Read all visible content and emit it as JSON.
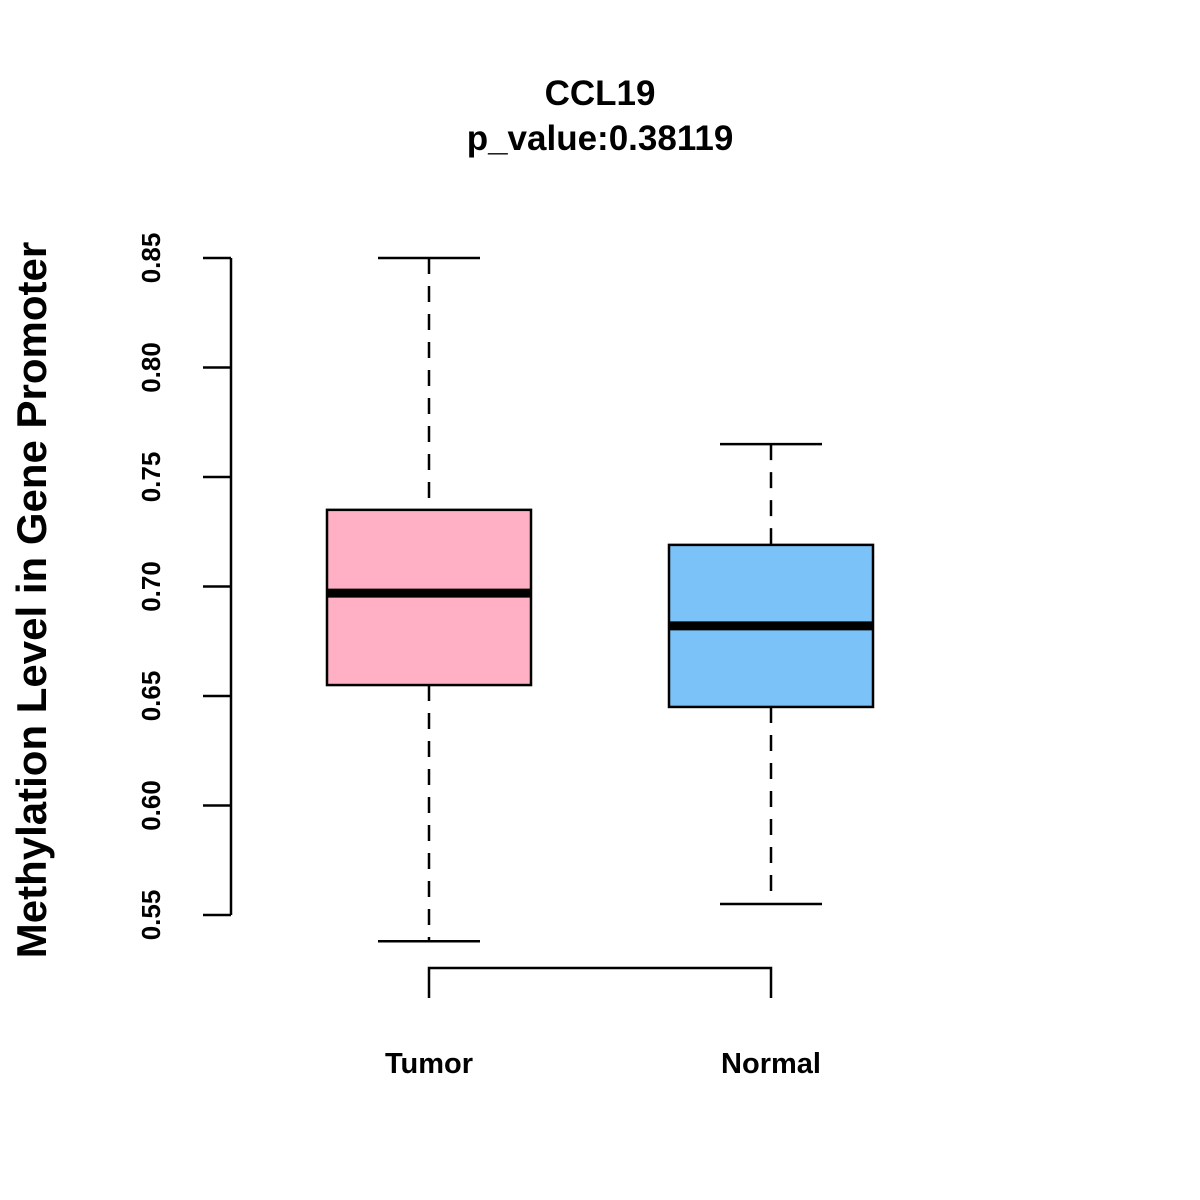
{
  "chart_data": {
    "type": "boxplot",
    "title": "CCL19",
    "subtitle": "p_value:0.38119",
    "xlabel": "",
    "ylabel": "Methylation Level in Gene Promoter",
    "ylim": [
      0.55,
      0.85
    ],
    "yticks": [
      "0.55",
      "0.60",
      "0.65",
      "0.70",
      "0.75",
      "0.80",
      "0.85"
    ],
    "grid": false,
    "categories": [
      "Tumor",
      "Normal"
    ],
    "boxes": [
      {
        "name": "Tumor",
        "color": "#FFB0C4",
        "whisker_low": 0.538,
        "q1": 0.655,
        "median": 0.697,
        "q3": 0.735,
        "whisker_high": 0.85
      },
      {
        "name": "Normal",
        "color": "#7BC2F8",
        "whisker_low": 0.555,
        "q1": 0.645,
        "median": 0.682,
        "q3": 0.719,
        "whisker_high": 0.765
      }
    ],
    "annotation": "bracket connecting Tumor and Normal"
  }
}
